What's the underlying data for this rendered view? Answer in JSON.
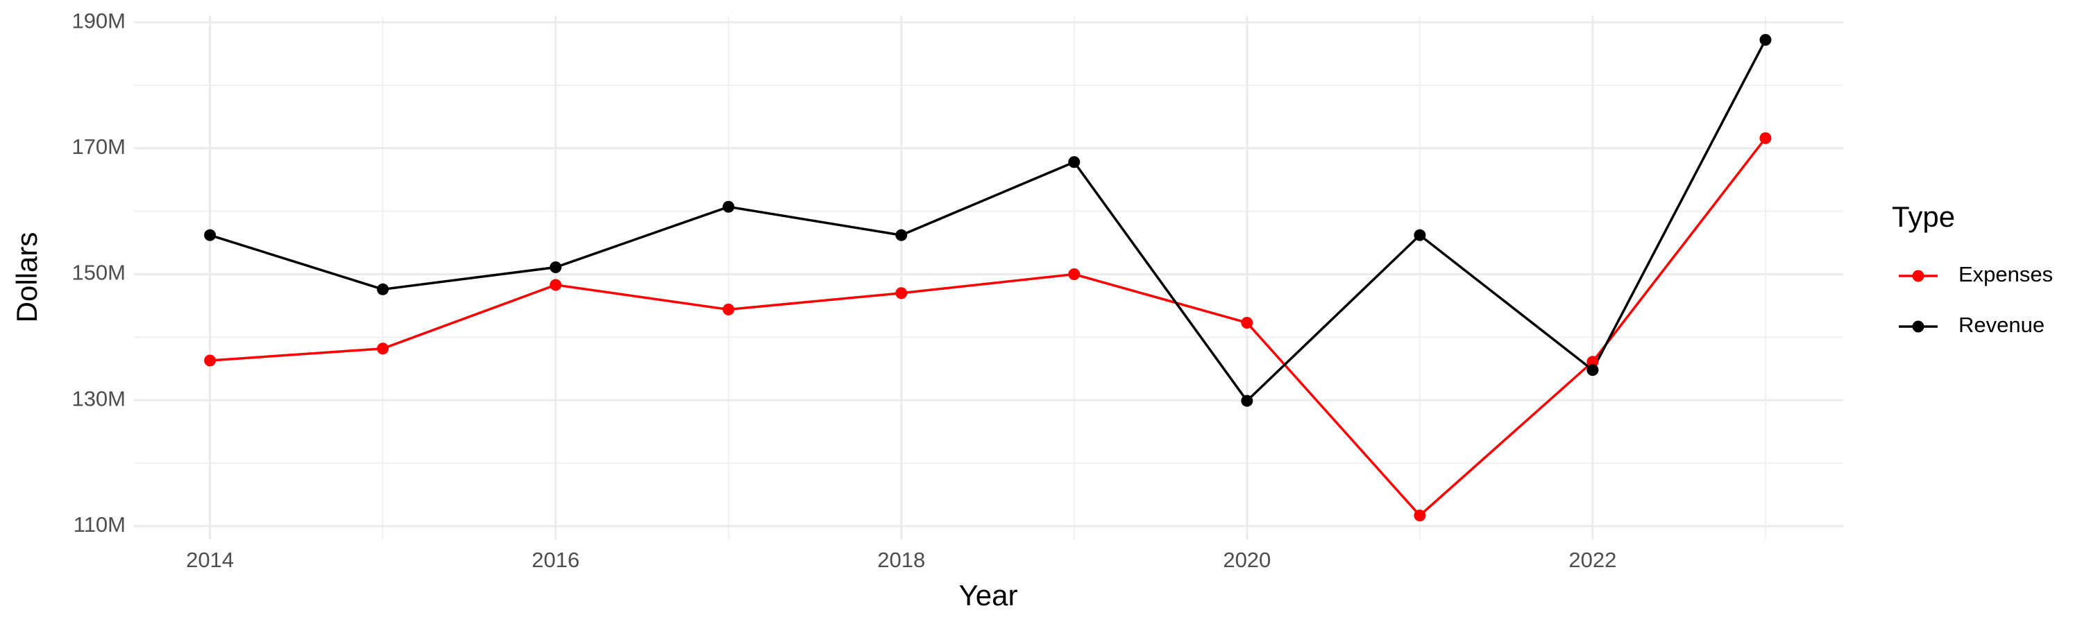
{
  "chart_data": {
    "type": "line",
    "x_label": "Year",
    "y_label": "Dollars",
    "x": [
      2014,
      2015,
      2016,
      2017,
      2018,
      2019,
      2020,
      2021,
      2022,
      2023
    ],
    "series": [
      {
        "name": "Expenses",
        "color": "#ff0000",
        "values": [
          136300000,
          138200000,
          148300000,
          144400000,
          147000000,
          150000000,
          142300000,
          111700000,
          136100000,
          171600000
        ]
      },
      {
        "name": "Revenue",
        "color": "#000000",
        "values": [
          156200000,
          147600000,
          151100000,
          160700000,
          156200000,
          167800000,
          129900000,
          156200000,
          134800000,
          187200000
        ]
      }
    ],
    "xlim": [
      2013.56,
      2023.45
    ],
    "xticks": [
      2014,
      2016,
      2018,
      2020,
      2022
    ],
    "ylim": [
      107900000,
      191000000
    ],
    "yticks": [
      {
        "value": 110000000,
        "label": "110M"
      },
      {
        "value": 130000000,
        "label": "130M"
      },
      {
        "value": 150000000,
        "label": "150M"
      },
      {
        "value": 170000000,
        "label": "170M"
      },
      {
        "value": 190000000,
        "label": "190M"
      }
    ],
    "grid": true,
    "legend_title": "Type",
    "legend_position": "right"
  }
}
